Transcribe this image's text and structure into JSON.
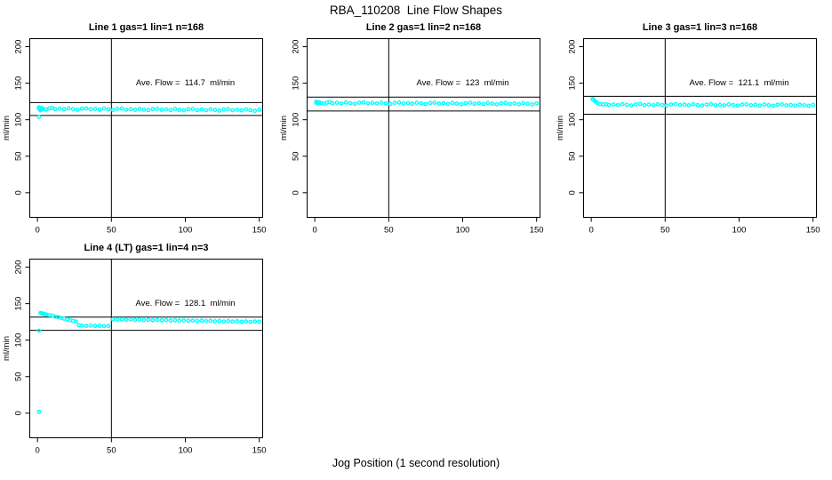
{
  "chart_data": {
    "type": "scatter",
    "title": "RBA_110208  Line Flow Shapes",
    "xlabel": "Jog Position (1 second resolution)",
    "ylabel": "ml/min",
    "x_ticks": [
      0,
      50,
      100,
      150
    ],
    "y_ticks": [
      0,
      50,
      100,
      150,
      200
    ],
    "xlim": [
      -5.2,
      152.3
    ],
    "ylim": [
      -33.7,
      211
    ],
    "grid": false,
    "legend": "none",
    "point_color": "#00FFFF",
    "line_color": "#000000",
    "plots": [
      {
        "title": "Line 1 gas=1 lin=1 n=168",
        "annotation": "Ave. Flow =  114.7  ml/min",
        "ave_flow": 114.7,
        "vline_x": 50,
        "ref_upper": 123.5,
        "ref_lower": 105.8,
        "points": [
          [
            1,
            117
          ],
          [
            1,
            104
          ],
          [
            2,
            112.8
          ],
          [
            1,
            115.3
          ],
          [
            2,
            114.4
          ],
          [
            3,
            115.8
          ],
          [
            4,
            114.7
          ],
          [
            6,
            113.9
          ],
          [
            8,
            115.4
          ],
          [
            10,
            115.9
          ],
          [
            12,
            114.5
          ],
          [
            15,
            115.1
          ],
          [
            18,
            114.2
          ],
          [
            21,
            115.5
          ],
          [
            24,
            114.5
          ],
          [
            27,
            113.7
          ],
          [
            30,
            115.1
          ],
          [
            33,
            115.6
          ],
          [
            36,
            114.2
          ],
          [
            39,
            114.8
          ],
          [
            42,
            113.9
          ],
          [
            45,
            115.3
          ],
          [
            48,
            114.2
          ],
          [
            51,
            113.4
          ],
          [
            54,
            114.9
          ],
          [
            57,
            115.3
          ],
          [
            60,
            113.9
          ],
          [
            63,
            114.5
          ],
          [
            66,
            113.6
          ],
          [
            69,
            115
          ],
          [
            72,
            113.9
          ],
          [
            75,
            113.1
          ],
          [
            78,
            114.6
          ],
          [
            81,
            115
          ],
          [
            84,
            113.6
          ],
          [
            87,
            114.3
          ],
          [
            90,
            113.3
          ],
          [
            93,
            114.7
          ],
          [
            96,
            113.6
          ],
          [
            99,
            112.8
          ],
          [
            102,
            114.3
          ],
          [
            105,
            114.7
          ],
          [
            108,
            113.3
          ],
          [
            111,
            114
          ],
          [
            114,
            113
          ],
          [
            117,
            114.4
          ],
          [
            120,
            113.4
          ],
          [
            123,
            112.5
          ],
          [
            126,
            114
          ],
          [
            129,
            114.5
          ],
          [
            132,
            113
          ],
          [
            135,
            113.7
          ],
          [
            138,
            112.7
          ],
          [
            141,
            114.1
          ],
          [
            144,
            113.1
          ],
          [
            147,
            112.2
          ],
          [
            150,
            113.7
          ]
        ]
      },
      {
        "title": "Line 2 gas=1 lin=2 n=168",
        "annotation": "Ave. Flow =  123  ml/min",
        "ave_flow": 123,
        "vline_x": 50,
        "ref_upper": 131,
        "ref_lower": 112,
        "points": [
          [
            1,
            124.6
          ],
          [
            1,
            123.3
          ],
          [
            2,
            122.4
          ],
          [
            3,
            123.8
          ],
          [
            4,
            122.8
          ],
          [
            6,
            122
          ],
          [
            8,
            123.4
          ],
          [
            10,
            123.9
          ],
          [
            12,
            122.5
          ],
          [
            15,
            123.2
          ],
          [
            18,
            122.3
          ],
          [
            21,
            123.6
          ],
          [
            24,
            122.6
          ],
          [
            27,
            121.8
          ],
          [
            30,
            123.3
          ],
          [
            33,
            123.7
          ],
          [
            36,
            122.3
          ],
          [
            39,
            123
          ],
          [
            42,
            122.1
          ],
          [
            45,
            123.4
          ],
          [
            48,
            122.4
          ],
          [
            51,
            121.6
          ],
          [
            54,
            123.1
          ],
          [
            57,
            123.5
          ],
          [
            60,
            122.1
          ],
          [
            63,
            122.8
          ],
          [
            66,
            121.9
          ],
          [
            69,
            123.2
          ],
          [
            72,
            122.2
          ],
          [
            75,
            121.4
          ],
          [
            78,
            122.9
          ],
          [
            81,
            123.4
          ],
          [
            84,
            122
          ],
          [
            87,
            122.6
          ],
          [
            90,
            121.7
          ],
          [
            93,
            123
          ],
          [
            96,
            122.1
          ],
          [
            99,
            121.3
          ],
          [
            102,
            122.7
          ],
          [
            105,
            123.2
          ],
          [
            108,
            121.8
          ],
          [
            111,
            122.5
          ],
          [
            114,
            121.5
          ],
          [
            117,
            122.9
          ],
          [
            120,
            121.9
          ],
          [
            123,
            121.1
          ],
          [
            126,
            122.5
          ],
          [
            129,
            123
          ],
          [
            132,
            121.6
          ],
          [
            135,
            122.2
          ],
          [
            138,
            121.3
          ],
          [
            141,
            122.7
          ],
          [
            144,
            121.7
          ],
          [
            147,
            120.9
          ],
          [
            150,
            122.4
          ]
        ]
      },
      {
        "title": "Line 3 gas=1 lin=3 n=168",
        "annotation": "Ave. Flow =  121.1  ml/min",
        "ave_flow": 121.1,
        "vline_x": 50,
        "ref_upper": 132,
        "ref_lower": 107.5,
        "points": [
          [
            1,
            128.5
          ],
          [
            1,
            127.8
          ],
          [
            2,
            126.4
          ],
          [
            3,
            124.8
          ],
          [
            4,
            123.2
          ],
          [
            6,
            121.4
          ],
          [
            8,
            120.9
          ],
          [
            10,
            121.3
          ],
          [
            12,
            120.2
          ],
          [
            15,
            120.8
          ],
          [
            18,
            120
          ],
          [
            21,
            121.3
          ],
          [
            24,
            120.4
          ],
          [
            27,
            119.6
          ],
          [
            30,
            121
          ],
          [
            33,
            121.5
          ],
          [
            36,
            120.1
          ],
          [
            39,
            120.8
          ],
          [
            42,
            119.9
          ],
          [
            45,
            121.2
          ],
          [
            48,
            120.2
          ],
          [
            51,
            119.5
          ],
          [
            54,
            120.9
          ],
          [
            57,
            121.4
          ],
          [
            60,
            120
          ],
          [
            63,
            120.7
          ],
          [
            66,
            119.8
          ],
          [
            69,
            121.1
          ],
          [
            72,
            120.1
          ],
          [
            75,
            119.4
          ],
          [
            78,
            120.8
          ],
          [
            81,
            121.3
          ],
          [
            84,
            119.9
          ],
          [
            87,
            120.5
          ],
          [
            90,
            119.7
          ],
          [
            93,
            121
          ],
          [
            96,
            120
          ],
          [
            99,
            119.3
          ],
          [
            102,
            120.7
          ],
          [
            105,
            121.2
          ],
          [
            108,
            119.8
          ],
          [
            111,
            120.4
          ],
          [
            114,
            119.5
          ],
          [
            117,
            120.9
          ],
          [
            120,
            119.9
          ],
          [
            123,
            119.2
          ],
          [
            126,
            120.6
          ],
          [
            129,
            121
          ],
          [
            132,
            119.7
          ],
          [
            135,
            120.3
          ],
          [
            138,
            119.4
          ],
          [
            141,
            120.8
          ],
          [
            144,
            119.8
          ],
          [
            147,
            119.1
          ],
          [
            150,
            120.3
          ]
        ]
      },
      {
        "title": "Line 4 (LT) gas=1 lin=4 n=3",
        "annotation": "Ave. Flow =  128.1  ml/min",
        "ave_flow": 128.1,
        "vline_x": 50,
        "ref_upper": 131.5,
        "ref_lower": 113.5,
        "points": [
          [
            1,
            2
          ],
          [
            1,
            113
          ],
          [
            2,
            137.2
          ],
          [
            3,
            136.8
          ],
          [
            4,
            136.3
          ],
          [
            5,
            135.7
          ],
          [
            6,
            135.2
          ],
          [
            8,
            134.3
          ],
          [
            10,
            133.4
          ],
          [
            12,
            132.4
          ],
          [
            14,
            131.4
          ],
          [
            16,
            130.4
          ],
          [
            18,
            129.4
          ],
          [
            20,
            128.4
          ],
          [
            22,
            127.4
          ],
          [
            24,
            126.4
          ],
          [
            26,
            125.5
          ],
          [
            28,
            120.3
          ],
          [
            30,
            119.8
          ],
          [
            33,
            119.5
          ],
          [
            36,
            119.9
          ],
          [
            39,
            119.4
          ],
          [
            42,
            119.7
          ],
          [
            45,
            119.2
          ],
          [
            48,
            119.6
          ],
          [
            51,
            128.6
          ],
          [
            54,
            128.2
          ],
          [
            57,
            128.5
          ],
          [
            60,
            127.9
          ],
          [
            63,
            128.3
          ],
          [
            66,
            127.7
          ],
          [
            69,
            128.1
          ],
          [
            72,
            127.5
          ],
          [
            75,
            127.9
          ],
          [
            78,
            127.3
          ],
          [
            81,
            127.7
          ],
          [
            84,
            127.1
          ],
          [
            87,
            127.5
          ],
          [
            90,
            126.9
          ],
          [
            93,
            127.3
          ],
          [
            96,
            126.7
          ],
          [
            99,
            127.1
          ],
          [
            102,
            126.5
          ],
          [
            105,
            126.9
          ],
          [
            108,
            126.3
          ],
          [
            111,
            126.7
          ],
          [
            114,
            126.1
          ],
          [
            117,
            126.5
          ],
          [
            120,
            125.9
          ],
          [
            123,
            126.3
          ],
          [
            126,
            125.7
          ],
          [
            129,
            126.1
          ],
          [
            132,
            125.5
          ],
          [
            135,
            125.9
          ],
          [
            138,
            125.3
          ],
          [
            141,
            125.7
          ],
          [
            144,
            125.1
          ],
          [
            147,
            125.5
          ],
          [
            150,
            125.3
          ]
        ]
      }
    ]
  }
}
